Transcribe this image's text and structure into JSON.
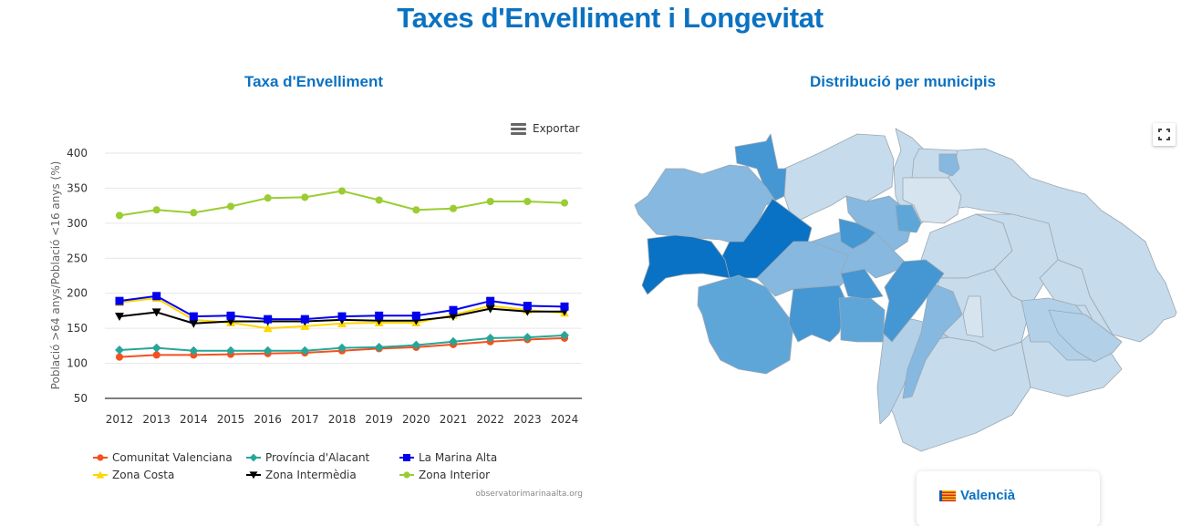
{
  "page": {
    "title": "Taxes d'Envelliment i Longevitat"
  },
  "chart_panel": {
    "title": "Taxa d'Envelliment",
    "export_label": "Exportar",
    "credits": "observatorimarinaalta.org"
  },
  "map_panel": {
    "title": "Distribució per municipis",
    "fullscreen_icon": "fullscreen-icon",
    "info_card": {
      "language_flag": "valencian-flag-icon",
      "language_label": "Valencià"
    },
    "colors": {
      "darkest": "#0a72c4",
      "dark": "#4497d3",
      "medium": "#5fa6d8",
      "medium_light": "#86b8e0",
      "light": "#b2d0e8",
      "lighter": "#c6dbeb",
      "lightest": "#d6e4ef"
    }
  },
  "chart_data": {
    "type": "line",
    "title": "Taxa d'Envelliment",
    "xlabel": "",
    "ylabel": "Població >64 anys/Població <16 anys (%)",
    "x": [
      2012,
      2013,
      2014,
      2015,
      2016,
      2017,
      2018,
      2019,
      2020,
      2021,
      2022,
      2023,
      2024
    ],
    "ylim": [
      50,
      400
    ],
    "yticks": [
      50,
      100,
      150,
      200,
      250,
      300,
      350,
      400
    ],
    "grid": true,
    "legend_position": "bottom",
    "series": [
      {
        "name": "Comunitat Valenciana",
        "color": "#f4511e",
        "marker": "circle",
        "values": [
          109,
          112,
          112,
          113,
          114,
          115,
          118,
          121,
          123,
          127,
          131,
          134,
          136
        ]
      },
      {
        "name": "Província d'Alacant",
        "color": "#26a69a",
        "marker": "diamond",
        "values": [
          119,
          122,
          118,
          118,
          118,
          118,
          122,
          123,
          126,
          131,
          136,
          137,
          140
        ]
      },
      {
        "name": "La Marina Alta",
        "color": "#0000ee",
        "marker": "square",
        "values": [
          189,
          196,
          167,
          168,
          163,
          163,
          167,
          168,
          168,
          176,
          189,
          182,
          181
        ]
      },
      {
        "name": "Zona Costa",
        "color": "#ffd600",
        "marker": "triangle",
        "values": [
          187,
          193,
          162,
          158,
          150,
          153,
          157,
          158,
          158,
          169,
          182,
          176,
          172
        ]
      },
      {
        "name": "Zona Intermèdia",
        "color": "#000000",
        "marker": "triangle-down",
        "values": [
          167,
          173,
          157,
          160,
          160,
          160,
          162,
          161,
          161,
          167,
          178,
          174,
          174
        ]
      },
      {
        "name": "Zona Interior",
        "color": "#9acd32",
        "marker": "circle",
        "values": [
          311,
          319,
          315,
          324,
          336,
          337,
          346,
          333,
          319,
          321,
          331,
          331,
          329
        ]
      }
    ]
  }
}
